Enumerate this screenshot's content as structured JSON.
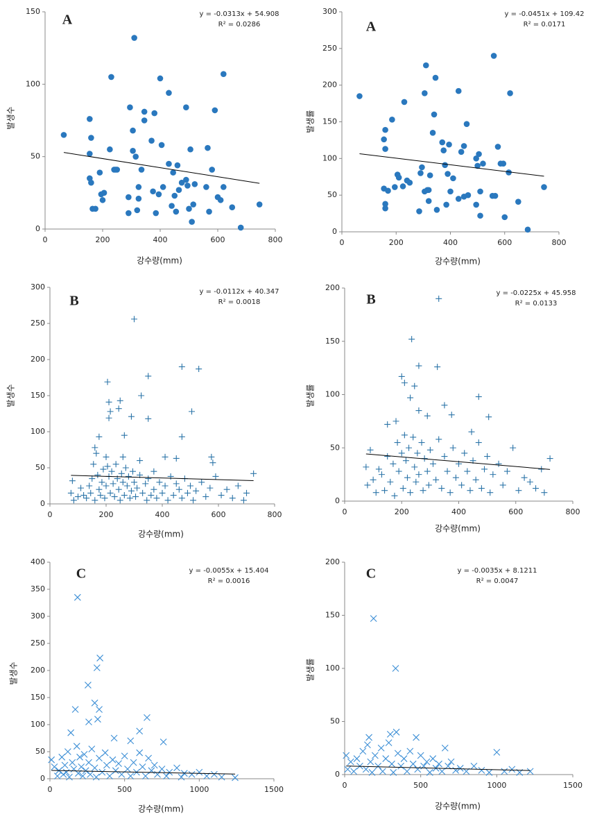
{
  "chart_data": [
    {
      "type": "scatter",
      "panel_label": "A",
      "xlabel": "강수량(mm)",
      "ylabel": "발생수",
      "marker": "circle",
      "color": "#2a78be",
      "xlim": [
        0,
        800
      ],
      "ylim": [
        0,
        150
      ],
      "xticks": [
        0,
        200,
        400,
        600,
        800
      ],
      "yticks": [
        0,
        50,
        100,
        150
      ],
      "trendline": {
        "equation": "y = -0.0313x + 54.908",
        "slope": -0.0313,
        "intercept": 54.908
      },
      "r2_label": "R² = 0.0286",
      "x": [
        65,
        155,
        160,
        155,
        155,
        160,
        165,
        175,
        190,
        195,
        200,
        205,
        225,
        230,
        240,
        245,
        250,
        290,
        290,
        295,
        305,
        305,
        310,
        315,
        320,
        325,
        325,
        335,
        345,
        345,
        370,
        375,
        380,
        385,
        395,
        400,
        405,
        410,
        430,
        430,
        440,
        445,
        450,
        455,
        460,
        465,
        475,
        490,
        490,
        495,
        500,
        505,
        510,
        515,
        520,
        560,
        565,
        570,
        580,
        590,
        600,
        610,
        620,
        620,
        650,
        680,
        745
      ],
      "values": [
        65,
        76,
        63,
        52,
        35,
        32,
        14,
        14,
        39,
        24,
        20,
        25,
        55,
        105,
        41,
        41,
        41,
        11,
        22,
        84,
        68,
        54,
        132,
        50,
        13,
        29,
        21,
        41,
        81,
        75,
        61,
        26,
        80,
        11,
        24,
        104,
        58,
        29,
        94,
        45,
        16,
        39,
        23,
        12,
        44,
        27,
        32,
        84,
        34,
        30,
        14,
        55,
        5,
        17,
        31,
        29,
        56,
        12,
        41,
        82,
        22,
        20,
        107,
        29,
        15,
        1,
        17
      ]
    },
    {
      "type": "scatter",
      "panel_label": "A",
      "xlabel": "강수량(mm)",
      "ylabel": "발생률",
      "marker": "circle",
      "color": "#2a78be",
      "xlim": [
        0,
        800
      ],
      "ylim": [
        0,
        300
      ],
      "xticks": [
        0,
        200,
        400,
        600,
        800
      ],
      "yticks": [
        0,
        50,
        100,
        150,
        200,
        250,
        300
      ],
      "trendline": {
        "equation": "y = -0.0451x + 109.42",
        "slope": -0.0451,
        "intercept": 109.42
      },
      "r2_label": "R² = 0.0171",
      "x": [
        65,
        155,
        155,
        160,
        160,
        160,
        160,
        170,
        185,
        195,
        205,
        210,
        225,
        230,
        240,
        250,
        285,
        290,
        295,
        305,
        305,
        310,
        315,
        320,
        320,
        325,
        335,
        340,
        345,
        350,
        370,
        375,
        380,
        385,
        390,
        395,
        400,
        410,
        430,
        430,
        440,
        450,
        450,
        460,
        465,
        495,
        495,
        500,
        505,
        510,
        510,
        520,
        555,
        560,
        565,
        575,
        585,
        595,
        600,
        615,
        620,
        650,
        685,
        745
      ],
      "values": [
        185,
        59,
        126,
        139,
        113,
        38,
        32,
        56,
        153,
        61,
        78,
        74,
        62,
        177,
        70,
        67,
        28,
        80,
        88,
        55,
        189,
        227,
        57,
        57,
        42,
        77,
        135,
        160,
        210,
        30,
        122,
        111,
        91,
        37,
        79,
        119,
        55,
        73,
        192,
        45,
        109,
        48,
        117,
        147,
        50,
        100,
        37,
        90,
        106,
        22,
        55,
        93,
        49,
        240,
        49,
        116,
        93,
        93,
        20,
        81,
        189,
        41,
        3,
        61
      ]
    },
    {
      "type": "scatter",
      "panel_label": "B",
      "xlabel": "강수량(mm)",
      "ylabel": "발생수",
      "marker": "plus",
      "color": "#2b74a8",
      "xlim": [
        0,
        800
      ],
      "ylim": [
        0,
        300
      ],
      "xticks": [
        0,
        200,
        400,
        600,
        800
      ],
      "yticks": [
        0,
        50,
        100,
        150,
        200,
        250,
        300
      ],
      "trendline": {
        "equation": "y = -0.0112x + 40.347",
        "slope": -0.0112,
        "intercept": 40.347
      },
      "r2_label": "R² = 0.0018",
      "x": [
        300,
        470,
        530,
        350,
        205,
        325,
        210,
        250,
        215,
        505,
        210,
        290,
        245,
        350,
        175,
        265,
        470,
        160,
        165,
        200,
        260,
        320,
        410,
        450,
        575,
        580,
        370,
        725,
        75,
        80,
        85,
        100,
        110,
        120,
        130,
        140,
        145,
        150,
        155,
        160,
        170,
        175,
        180,
        185,
        190,
        195,
        200,
        205,
        210,
        215,
        220,
        225,
        230,
        235,
        240,
        245,
        250,
        255,
        260,
        265,
        270,
        275,
        280,
        285,
        290,
        295,
        300,
        305,
        310,
        320,
        330,
        340,
        345,
        350,
        360,
        370,
        380,
        390,
        400,
        410,
        420,
        430,
        440,
        450,
        460,
        470,
        480,
        490,
        500,
        510,
        520,
        540,
        555,
        570,
        590,
        610,
        630,
        650,
        670,
        690,
        700
      ],
      "values": [
        256,
        190,
        187,
        177,
        169,
        150,
        141,
        143,
        128,
        128,
        119,
        121,
        132,
        118,
        93,
        95,
        93,
        78,
        70,
        65,
        65,
        60,
        65,
        63,
        65,
        57,
        45,
        42,
        15,
        32,
        5,
        10,
        22,
        12,
        8,
        25,
        15,
        35,
        55,
        5,
        40,
        20,
        12,
        30,
        48,
        8,
        25,
        52,
        38,
        15,
        45,
        28,
        10,
        55,
        35,
        20,
        5,
        42,
        30,
        12,
        50,
        25,
        38,
        8,
        18,
        45,
        30,
        10,
        22,
        40,
        15,
        28,
        5,
        35,
        12,
        20,
        8,
        30,
        15,
        25,
        5,
        38,
        12,
        28,
        20,
        8,
        35,
        15,
        25,
        5,
        18,
        30,
        10,
        22,
        38,
        12,
        20,
        8,
        25,
        5,
        15
      ]
    },
    {
      "type": "scatter",
      "panel_label": "B",
      "xlabel": "강수량(mm)",
      "ylabel": "발생률",
      "marker": "plus",
      "color": "#2b74a8",
      "xlim": [
        0,
        800
      ],
      "ylim": [
        0,
        200
      ],
      "xticks": [
        0,
        200,
        400,
        600,
        800
      ],
      "yticks": [
        0,
        50,
        100,
        150,
        200
      ],
      "trendline": {
        "equation": "y = -0.0225x + 45.958",
        "slope": -0.0225,
        "intercept": 45.958
      },
      "r2_label": "R² = 0.0133",
      "x": [
        330,
        235,
        260,
        325,
        200,
        245,
        210,
        470,
        230,
        290,
        350,
        505,
        260,
        150,
        375,
        445,
        180,
        75,
        80,
        90,
        100,
        110,
        120,
        130,
        140,
        150,
        160,
        170,
        175,
        185,
        190,
        200,
        205,
        210,
        215,
        220,
        225,
        230,
        240,
        245,
        250,
        255,
        260,
        270,
        275,
        280,
        290,
        295,
        300,
        310,
        320,
        330,
        340,
        350,
        360,
        370,
        380,
        390,
        400,
        410,
        420,
        430,
        440,
        450,
        460,
        470,
        480,
        490,
        500,
        510,
        520,
        540,
        555,
        570,
        590,
        610,
        630,
        650,
        670,
        690,
        700,
        720
      ],
      "values": [
        190,
        152,
        127,
        126,
        117,
        108,
        111,
        98,
        97,
        80,
        90,
        79,
        85,
        72,
        81,
        65,
        75,
        32,
        15,
        48,
        20,
        8,
        30,
        25,
        10,
        42,
        18,
        35,
        5,
        55,
        28,
        45,
        12,
        62,
        38,
        22,
        50,
        8,
        60,
        32,
        18,
        45,
        25,
        55,
        10,
        40,
        28,
        15,
        48,
        35,
        20,
        58,
        12,
        42,
        28,
        8,
        50,
        22,
        35,
        15,
        45,
        28,
        10,
        38,
        20,
        55,
        12,
        30,
        42,
        8,
        25,
        35,
        15,
        28,
        50,
        10,
        22,
        18,
        12,
        30,
        8,
        40
      ]
    },
    {
      "type": "scatter",
      "panel_label": "C",
      "xlabel": "강수량(mm)",
      "ylabel": "발생수",
      "marker": "cross",
      "color": "#3d8fd6",
      "xlim": [
        0,
        1500
      ],
      "ylim": [
        0,
        400
      ],
      "xticks": [
        0,
        500,
        1000,
        1500
      ],
      "yticks": [
        0,
        50,
        100,
        150,
        200,
        250,
        300,
        350,
        400
      ],
      "trendline": {
        "equation": "y = -0.0055x + 15.404",
        "slope": -0.0055,
        "intercept": 15.404
      },
      "r2_label": "R² = 0.0016",
      "x": [
        185,
        335,
        315,
        255,
        300,
        330,
        170,
        320,
        650,
        260,
        600,
        140,
        430,
        760,
        540,
        10,
        30,
        50,
        60,
        80,
        90,
        100,
        110,
        120,
        130,
        150,
        160,
        180,
        190,
        200,
        210,
        220,
        230,
        240,
        260,
        270,
        280,
        300,
        310,
        330,
        350,
        370,
        380,
        400,
        420,
        440,
        460,
        480,
        500,
        520,
        540,
        560,
        580,
        600,
        620,
        640,
        660,
        680,
        700,
        720,
        750,
        780,
        800,
        850,
        880,
        900,
        950,
        1000,
        1050,
        1100,
        1150,
        1240
      ],
      "values": [
        335,
        223,
        205,
        173,
        140,
        128,
        128,
        110,
        113,
        105,
        88,
        85,
        75,
        68,
        70,
        35,
        22,
        5,
        15,
        40,
        8,
        25,
        12,
        50,
        3,
        30,
        18,
        60,
        10,
        40,
        22,
        5,
        45,
        15,
        30,
        8,
        55,
        20,
        3,
        38,
        12,
        48,
        25,
        5,
        35,
        15,
        28,
        8,
        42,
        18,
        5,
        30,
        12,
        48,
        22,
        5,
        38,
        15,
        25,
        8,
        18,
        5,
        12,
        20,
        3,
        10,
        8,
        12,
        5,
        8,
        3,
        2
      ]
    },
    {
      "type": "scatter",
      "panel_label": "C",
      "xlabel": "강수량(mm)",
      "ylabel": "발생률",
      "marker": "cross",
      "color": "#3d8fd6",
      "xlim": [
        0,
        1500
      ],
      "ylim": [
        0,
        200
      ],
      "xticks": [
        0,
        500,
        1000,
        1500
      ],
      "yticks": [
        0,
        50,
        100,
        150,
        200
      ],
      "trendline": {
        "equation": "y = -0.0035x + 8.1211",
        "slope": -0.0035,
        "intercept": 8.1211
      },
      "r2_label": "R² = 0.0047",
      "x": [
        190,
        335,
        340,
        300,
        160,
        470,
        660,
        1000,
        10,
        20,
        40,
        60,
        80,
        100,
        120,
        140,
        150,
        170,
        180,
        200,
        220,
        240,
        250,
        270,
        290,
        310,
        320,
        350,
        370,
        390,
        410,
        430,
        450,
        480,
        500,
        520,
        540,
        560,
        580,
        600,
        620,
        640,
        680,
        700,
        730,
        760,
        800,
        850,
        900,
        950,
        1050,
        1100,
        1150,
        1220
      ],
      "values": [
        147,
        100,
        40,
        38,
        35,
        35,
        25,
        21,
        18,
        5,
        12,
        3,
        15,
        8,
        22,
        5,
        28,
        12,
        2,
        18,
        8,
        25,
        3,
        15,
        30,
        10,
        2,
        20,
        8,
        15,
        3,
        22,
        10,
        5,
        18,
        8,
        12,
        2,
        15,
        6,
        10,
        3,
        8,
        12,
        4,
        6,
        3,
        8,
        4,
        2,
        3,
        5,
        2,
        3
      ]
    }
  ]
}
